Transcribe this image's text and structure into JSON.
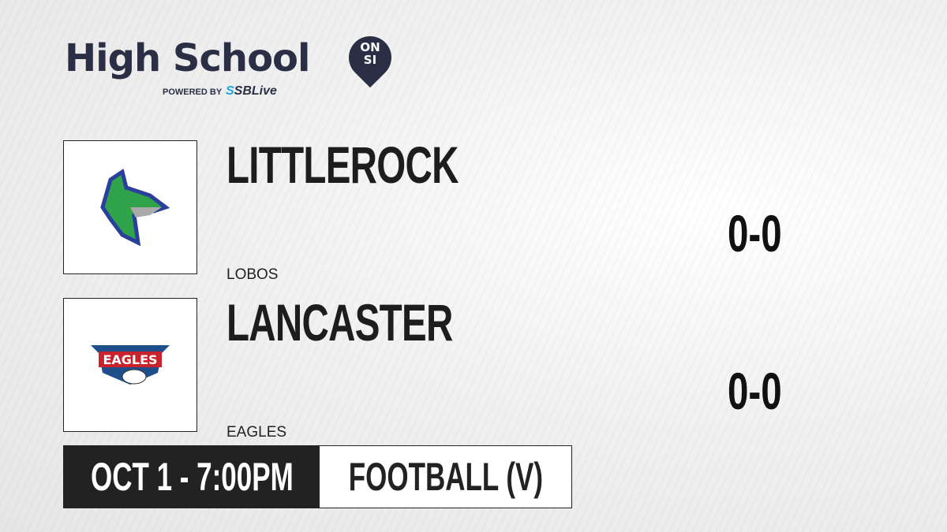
{
  "brand": {
    "title": "High School",
    "badge_line1": "ON",
    "badge_line2": "SI",
    "powered_by": "POWERED BY",
    "partner_prefix": "S",
    "partner": "SBLive"
  },
  "teams": [
    {
      "name": "LITTLEROCK",
      "mascot": "LOBOS",
      "score": "0-0",
      "logo_icon": "wolf-logo"
    },
    {
      "name": "LANCASTER",
      "mascot": "EAGLES",
      "score": "0-0",
      "logo_icon": "eagles-logo"
    }
  ],
  "game": {
    "datetime": "OCT 1 - 7:00PM",
    "sport": "FOOTBALL (V)"
  }
}
